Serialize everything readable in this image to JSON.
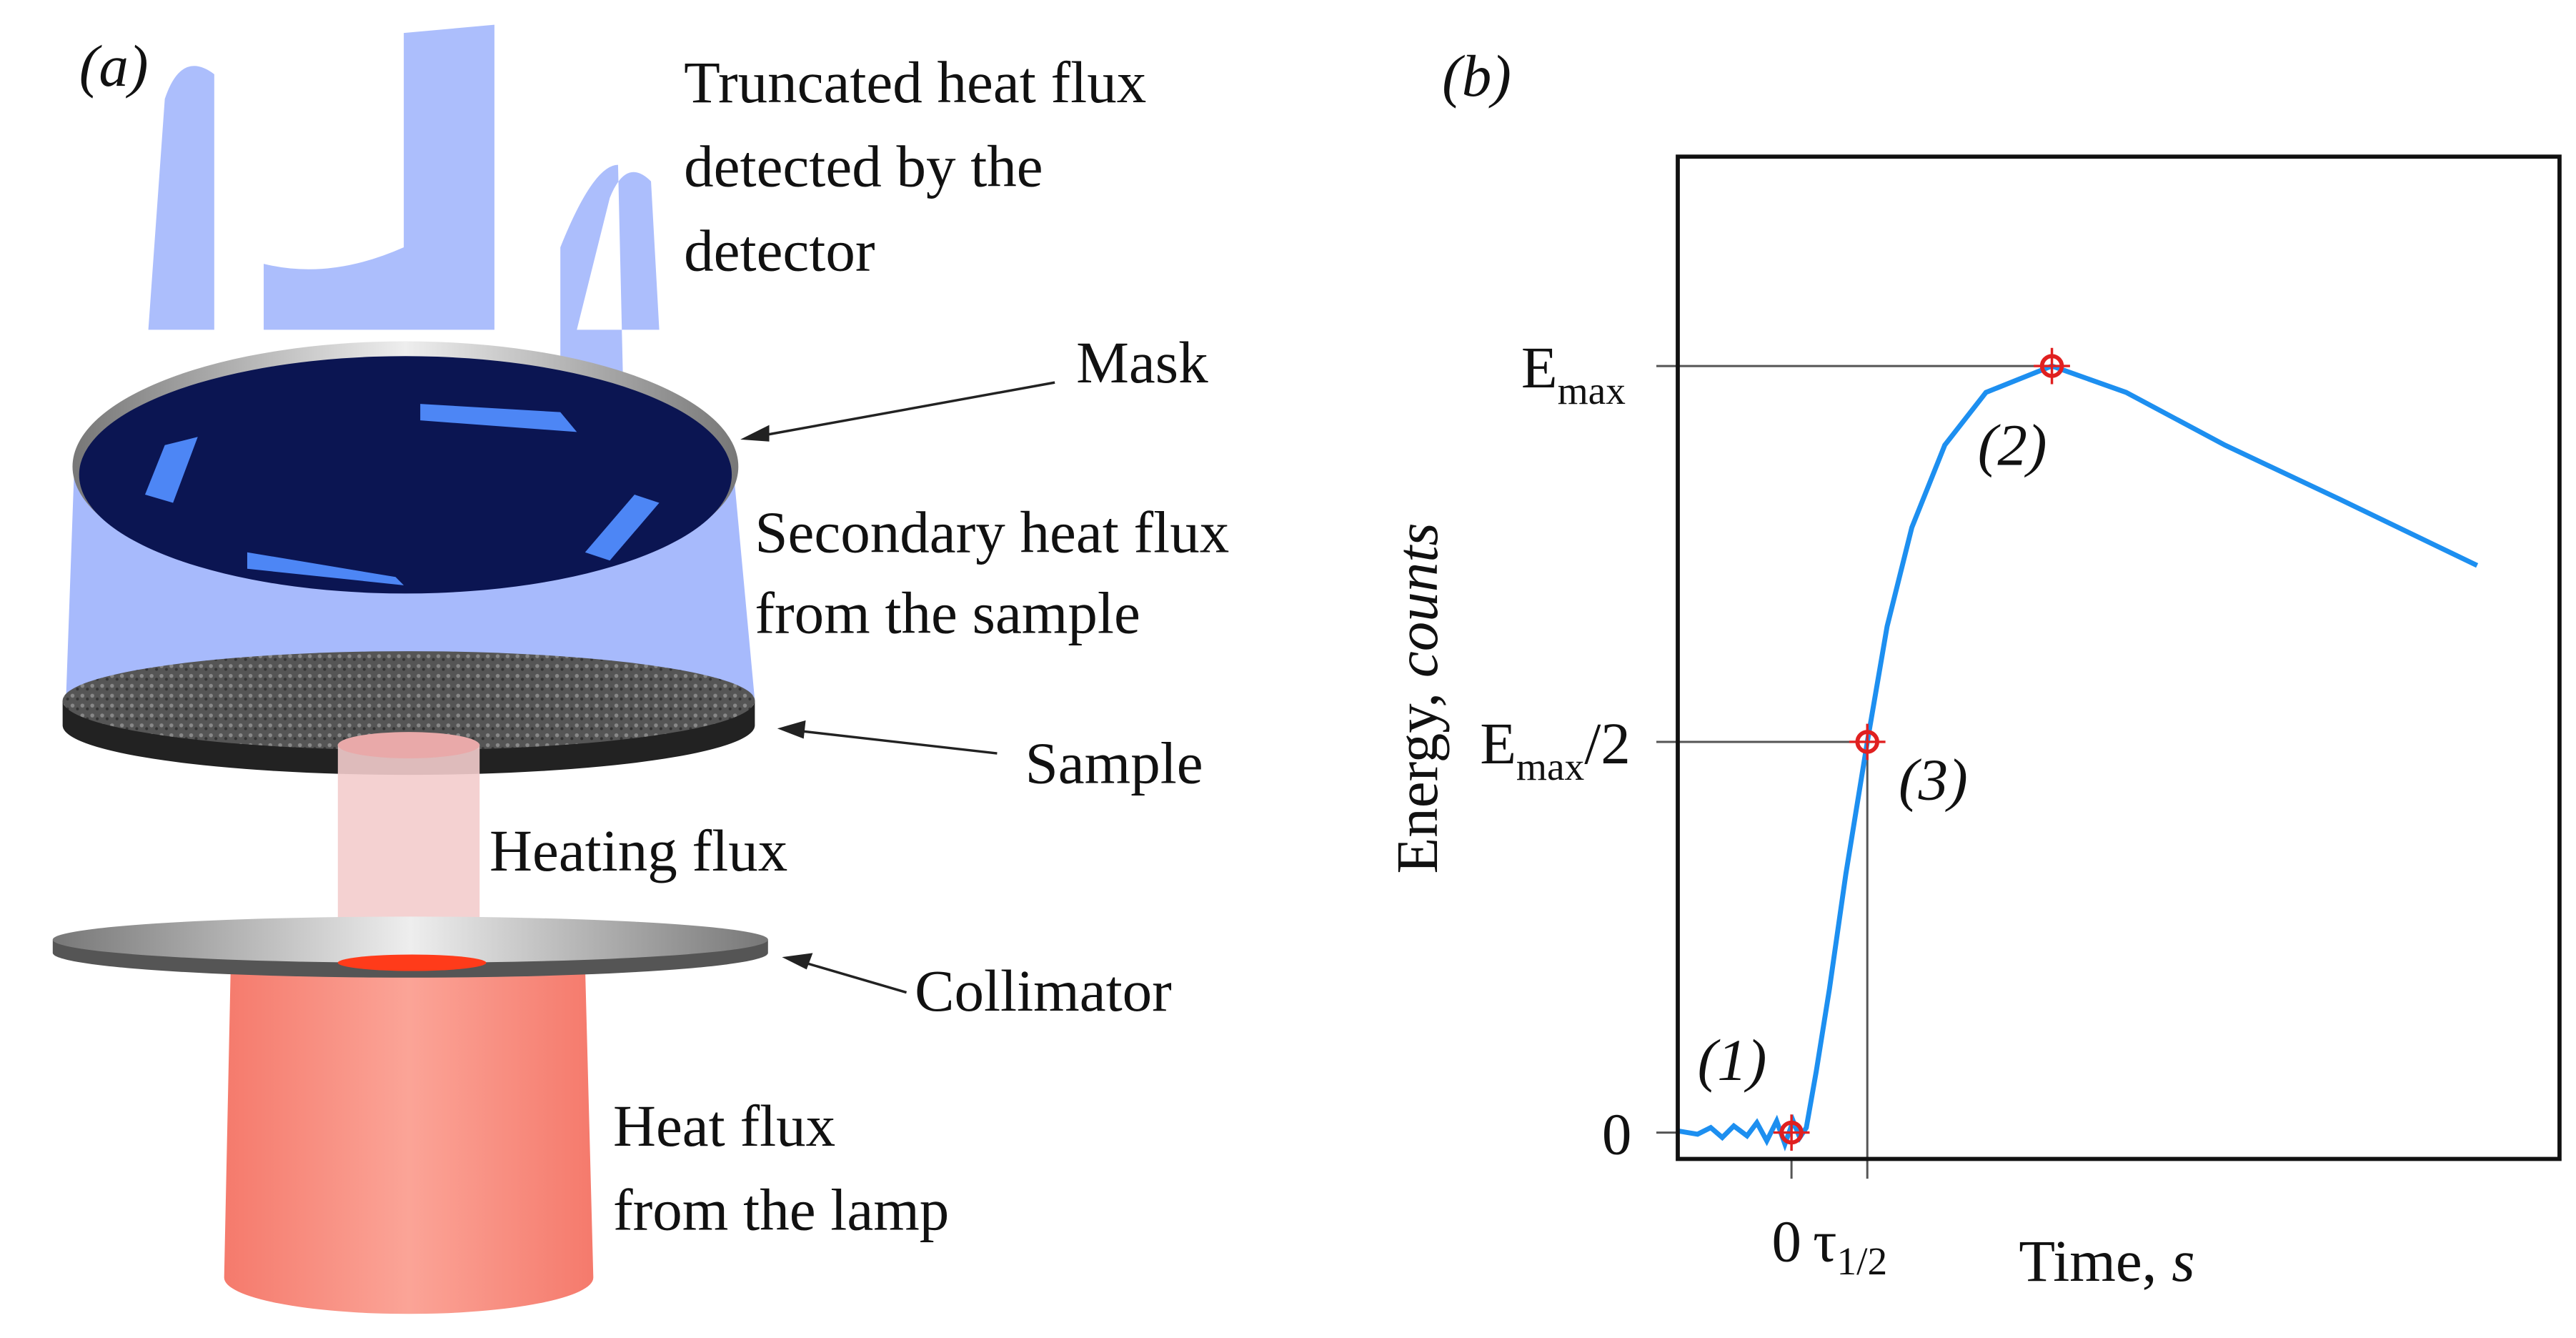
{
  "panel_a": {
    "label": "(a)",
    "truncated_flux": [
      "Truncated heat flux",
      "detected by the",
      "detector"
    ],
    "mask": "Mask",
    "secondary_flux": [
      "Secondary heat flux",
      "from the sample"
    ],
    "sample": "Sample",
    "heating_flux": "Heating flux",
    "collimator": "Collimator",
    "lamp_flux": [
      "Heat flux",
      "from the lamp"
    ]
  },
  "panel_b": {
    "label": "(b)",
    "y_axis_label": {
      "text": "Energy, ",
      "italic": "counts"
    },
    "y_ticks": {
      "emax": {
        "base": "E",
        "sub": "max"
      },
      "emax_half": {
        "base": "E",
        "sub": "max",
        "suffix": "/2"
      },
      "zero": "0"
    },
    "x_ticks": {
      "zero": "0",
      "tau": {
        "base": "τ",
        "sub": "1/2"
      }
    },
    "x_axis_label": {
      "text": "Time, ",
      "italic": "s"
    },
    "points": [
      "(1)",
      "(2)",
      "(3)"
    ]
  }
}
